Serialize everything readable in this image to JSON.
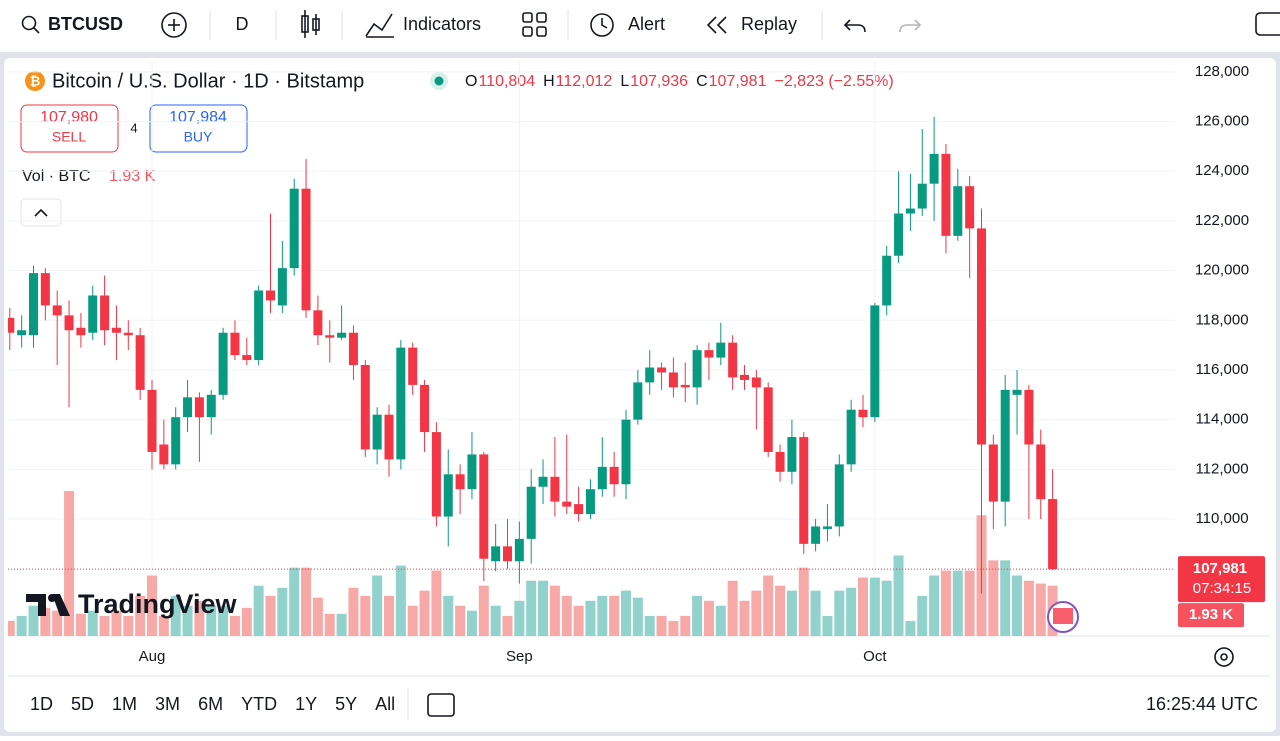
{
  "toolbar": {
    "symbol": "BTCUSD",
    "interval": "D",
    "indicators": "Indicators",
    "alert": "Alert",
    "replay": "Replay"
  },
  "trade": {
    "sell_price": "107,980",
    "sell": "SELL",
    "spread": "4",
    "buy_price": "107,984",
    "buy": "BUY"
  },
  "bottom_bar": {
    "ranges": [
      "1D",
      "5D",
      "1M",
      "3M",
      "6M",
      "YTD",
      "1Y",
      "5Y",
      "All"
    ],
    "clock": "16:25:44 UTC"
  },
  "chart_data": {
    "type": "candlestick",
    "title": "Bitcoin / U.S. Dollar · 1D · Bitstamp",
    "ohlc": [
      {
        "key": "O",
        "value": "110,804"
      },
      {
        "key": "H",
        "value": "112,012"
      },
      {
        "key": "L",
        "value": "107,936"
      },
      {
        "key": "C",
        "value": "107,981"
      }
    ],
    "change": "−2,823 (−2.55%)",
    "volume_title": "Vol · BTC",
    "volume_label": "1.93 K",
    "last_price_label": "107,981",
    "countdown": "07:34:15",
    "up_color": "#089981",
    "down_color": "#f23645",
    "volume_up_color": "#92d2cc",
    "volume_down_color": "#f7a9a7",
    "categories": [
      null,
      null,
      null,
      null,
      null,
      null,
      null,
      null,
      null,
      null,
      null,
      null,
      "Aug",
      null,
      null,
      null,
      null,
      null,
      null,
      null,
      null,
      null,
      null,
      null,
      null,
      null,
      null,
      null,
      null,
      null,
      null,
      null,
      null,
      null,
      null,
      null,
      null,
      null,
      null,
      null,
      null,
      null,
      null,
      "Sep",
      null,
      null,
      null,
      null,
      null,
      null,
      null,
      null,
      null,
      null,
      null,
      null,
      null,
      null,
      null,
      null,
      null,
      null,
      null,
      null,
      null,
      null,
      null,
      null,
      null,
      null,
      null,
      null,
      null,
      "Oct",
      null,
      null,
      null,
      null,
      null,
      null,
      null,
      null,
      null,
      null,
      null,
      null,
      null,
      null,
      null
    ],
    "open": [
      118100,
      117400,
      117400,
      119900,
      118600,
      118200,
      117700,
      117500,
      119000,
      117700,
      117500,
      117400,
      115200,
      113000,
      112200,
      114100,
      114900,
      114100,
      115000,
      117500,
      116600,
      116400,
      119200,
      118600,
      120100,
      123300,
      118400,
      117400,
      117300,
      117500,
      116200,
      112800,
      114200,
      112400,
      116900,
      115400,
      113500,
      110100,
      111800,
      111200,
      112600,
      108300,
      108900,
      108300,
      109200,
      111300,
      111700,
      110700,
      110600,
      110200,
      111200,
      112100,
      111400,
      114000,
      115500,
      116100,
      115900,
      115400,
      115300,
      116800,
      116500,
      117100,
      115800,
      115700,
      115300,
      112700,
      111900,
      113300,
      109000,
      109600,
      109700,
      112200,
      114400,
      114100,
      118600,
      120600,
      122300,
      122500,
      123500,
      124700,
      121400,
      123400,
      121700,
      113000,
      110700,
      115000,
      115200,
      113000,
      110804
    ],
    "high": [
      118500,
      118200,
      120200,
      120100,
      119200,
      118800,
      118300,
      119400,
      119800,
      118600,
      118000,
      117700,
      115600,
      114000,
      114500,
      115600,
      115100,
      115200,
      117700,
      118000,
      117300,
      119400,
      122300,
      121200,
      123700,
      124500,
      119000,
      118000,
      118600,
      117800,
      116400,
      114500,
      114600,
      117200,
      117100,
      115600,
      113900,
      112800,
      112200,
      113500,
      112700,
      109800,
      110000,
      109900,
      112000,
      112400,
      113300,
      113400,
      111300,
      111600,
      113300,
      112700,
      114400,
      116000,
      116800,
      116300,
      116500,
      116300,
      117000,
      117100,
      117900,
      117400,
      116200,
      116000,
      115500,
      113000,
      114000,
      113500,
      110000,
      110600,
      112600,
      114800,
      115000,
      118700,
      121000,
      124000,
      123900,
      125700,
      126200,
      125100,
      124100,
      123800,
      122500,
      113400,
      115800,
      116000,
      115400,
      113600,
      112012
    ],
    "low": [
      116800,
      116900,
      116900,
      118000,
      116200,
      114500,
      116900,
      117200,
      117000,
      116400,
      116800,
      114800,
      112000,
      112000,
      112000,
      113500,
      112300,
      113400,
      114800,
      116400,
      116200,
      116200,
      118300,
      118300,
      119800,
      118100,
      117000,
      116300,
      117200,
      115600,
      112500,
      112200,
      111700,
      112000,
      115000,
      112700,
      109700,
      108900,
      110200,
      110800,
      107500,
      107900,
      108000,
      107400,
      108200,
      110600,
      110100,
      110200,
      109900,
      110000,
      110900,
      110900,
      110800,
      113800,
      115000,
      115200,
      114900,
      114700,
      114600,
      115600,
      116200,
      115200,
      115200,
      113600,
      112500,
      111500,
      111400,
      108600,
      108700,
      109100,
      109300,
      111900,
      113700,
      113900,
      118200,
      120300,
      121600,
      122200,
      122000,
      120700,
      121200,
      119700,
      107000,
      109600,
      109700,
      113400,
      110000,
      110000,
      107936
    ],
    "close": [
      117500,
      117600,
      119900,
      118600,
      118200,
      117600,
      117400,
      119000,
      117600,
      117500,
      117400,
      115200,
      112700,
      112200,
      114100,
      114900,
      114100,
      115000,
      117500,
      116600,
      116400,
      119200,
      118800,
      120100,
      123300,
      118400,
      117400,
      117300,
      117500,
      116200,
      112800,
      114200,
      112400,
      116900,
      115400,
      113500,
      110100,
      111800,
      111200,
      112600,
      108400,
      108900,
      108300,
      109200,
      111300,
      111700,
      110700,
      110500,
      110200,
      111200,
      112100,
      111400,
      114000,
      115500,
      116100,
      115900,
      115300,
      115300,
      116800,
      116500,
      117100,
      115700,
      115600,
      115300,
      112700,
      111900,
      113300,
      109000,
      109700,
      109700,
      112200,
      114400,
      114100,
      118600,
      120600,
      122300,
      122500,
      123500,
      124700,
      121400,
      123400,
      121700,
      113000,
      110700,
      115200,
      115200,
      113000,
      110800,
      107981
    ],
    "volume": {
      "values": [
        0.58,
        0.77,
        1.16,
        1.08,
        0.97,
        5.56,
        0.85,
        0.97,
        0.77,
        0.97,
        0.77,
        1.54,
        2.32,
        0.77,
        1.54,
        1.16,
        1.35,
        1.16,
        1.16,
        0.77,
        1.08,
        1.93,
        1.54,
        1.85,
        2.62,
        2.62,
        1.47,
        0.85,
        0.85,
        1.85,
        1.54,
        2.32,
        1.54,
        2.7,
        1.16,
        1.74,
        2.51,
        1.54,
        1.16,
        0.97,
        1.93,
        1.16,
        0.77,
        1.35,
        2.12,
        2.12,
        1.93,
        1.54,
        1.16,
        1.35,
        1.54,
        1.54,
        1.74,
        1.47,
        0.77,
        0.77,
        0.58,
        0.77,
        1.54,
        1.35,
        1.16,
        2.12,
        1.35,
        1.74,
        2.32,
        1.93,
        1.74,
        2.62,
        1.74,
        0.77,
        1.74,
        1.85,
        2.24,
        2.24,
        2.12,
        3.09,
        0.58,
        1.54,
        2.32,
        2.51,
        2.51,
        2.51,
        4.63,
        2.9,
        2.9,
        2.32,
        2.12,
        2.01,
        1.93
      ]
    },
    "ylim": [
      105290,
      128480
    ],
    "yticks": [
      {
        "value": 110000,
        "label": "110,000"
      },
      {
        "value": 112000,
        "label": "112,000"
      },
      {
        "value": 114000,
        "label": "114,000"
      },
      {
        "value": 116000,
        "label": "116,000"
      },
      {
        "value": 118000,
        "label": "118,000"
      },
      {
        "value": 120000,
        "label": "120,000"
      },
      {
        "value": 122000,
        "label": "122,000"
      },
      {
        "value": 124000,
        "label": "124,000"
      },
      {
        "value": 126000,
        "label": "126,000"
      },
      {
        "value": 128000,
        "label": "128,000"
      }
    ],
    "grid": true,
    "logo": "TradingView"
  }
}
